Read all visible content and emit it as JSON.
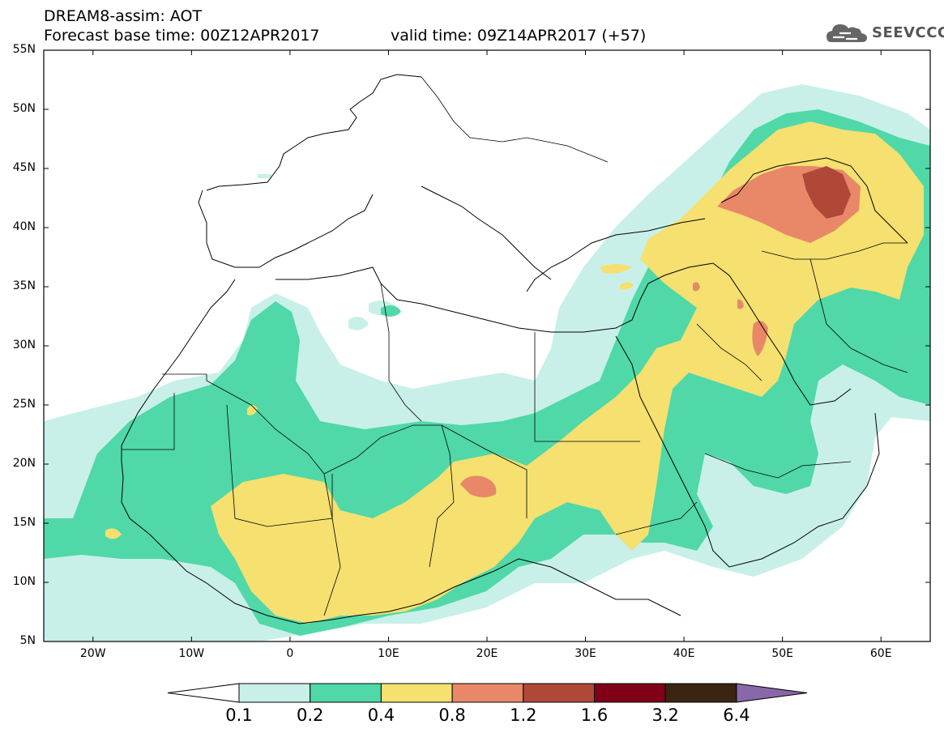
{
  "header": {
    "title": "DREAM8-assim: AOT",
    "base_time": "Forecast base time: 00Z12APR2017",
    "valid_time": "valid time: 09Z14APR2017 (+57)"
  },
  "logo": {
    "text": "SEEVCCC",
    "icon": "cloud-icon"
  },
  "map": {
    "lat_labels": [
      "55N",
      "50N",
      "45N",
      "40N",
      "35N",
      "30N",
      "25N",
      "20N",
      "15N",
      "10N",
      "5N"
    ],
    "lon_labels": [
      "20W",
      "10W",
      "0",
      "10E",
      "20E",
      "30E",
      "40E",
      "50E",
      "60E"
    ],
    "extent": {
      "lon": [
        -25,
        65
      ],
      "lat": [
        5,
        55
      ]
    }
  },
  "colorbar": {
    "labels": [
      "0.1",
      "0.2",
      "0.4",
      "0.8",
      "1.2",
      "1.6",
      "3.2",
      "6.4"
    ],
    "colors": [
      "#c8f0e8",
      "#50d8a8",
      "#f5e070",
      "#e88868",
      "#b04838",
      "#800018",
      "#3a2412",
      "#8868a8"
    ],
    "under_color": "#ffffff"
  }
}
